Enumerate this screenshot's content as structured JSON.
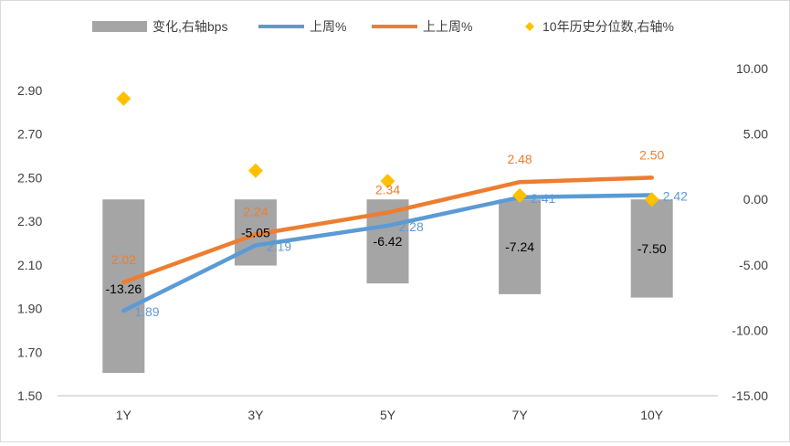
{
  "chart_data": {
    "type": "combo",
    "categories": [
      "1Y",
      "3Y",
      "5Y",
      "7Y",
      "10Y"
    ],
    "left_axis": {
      "min": 1.5,
      "max": 3.0,
      "ticks": [
        "1.50",
        "1.70",
        "1.90",
        "2.10",
        "2.30",
        "2.50",
        "2.70",
        "2.90"
      ]
    },
    "right_axis": {
      "min": -15,
      "max": 12,
      "ticks": [
        "-15.00",
        "-10.00",
        "-5.00",
        "0.00",
        "5.00",
        "10.00"
      ]
    },
    "legend_position": "top",
    "series": [
      {
        "name": "变化,右轴bps",
        "type": "bar",
        "axis": "right",
        "color": "#a5a5a5",
        "values": [
          -13.26,
          -5.05,
          -6.42,
          -7.24,
          -7.5
        ],
        "labels": [
          "-13.26",
          "-5.05",
          "-6.42",
          "-7.24",
          "-7.50"
        ]
      },
      {
        "name": "上周%",
        "type": "line",
        "axis": "left",
        "color": "#5b9bd5",
        "values": [
          1.89,
          2.19,
          2.28,
          2.41,
          2.42
        ],
        "labels": [
          "1.89",
          "2.19",
          "2.28",
          "2.41",
          "2.42"
        ]
      },
      {
        "name": "上上周%",
        "type": "line",
        "axis": "left",
        "color": "#ed7d31",
        "values": [
          2.02,
          2.24,
          2.34,
          2.48,
          2.5
        ],
        "labels": [
          "2.02",
          "2.24",
          "2.34",
          "2.48",
          "2.50"
        ]
      },
      {
        "name": "10年历史分位数,右轴%",
        "type": "scatter",
        "axis": "right",
        "color": "#ffc000",
        "values": [
          7.7,
          2.2,
          1.4,
          0.3,
          0.0
        ]
      }
    ]
  }
}
